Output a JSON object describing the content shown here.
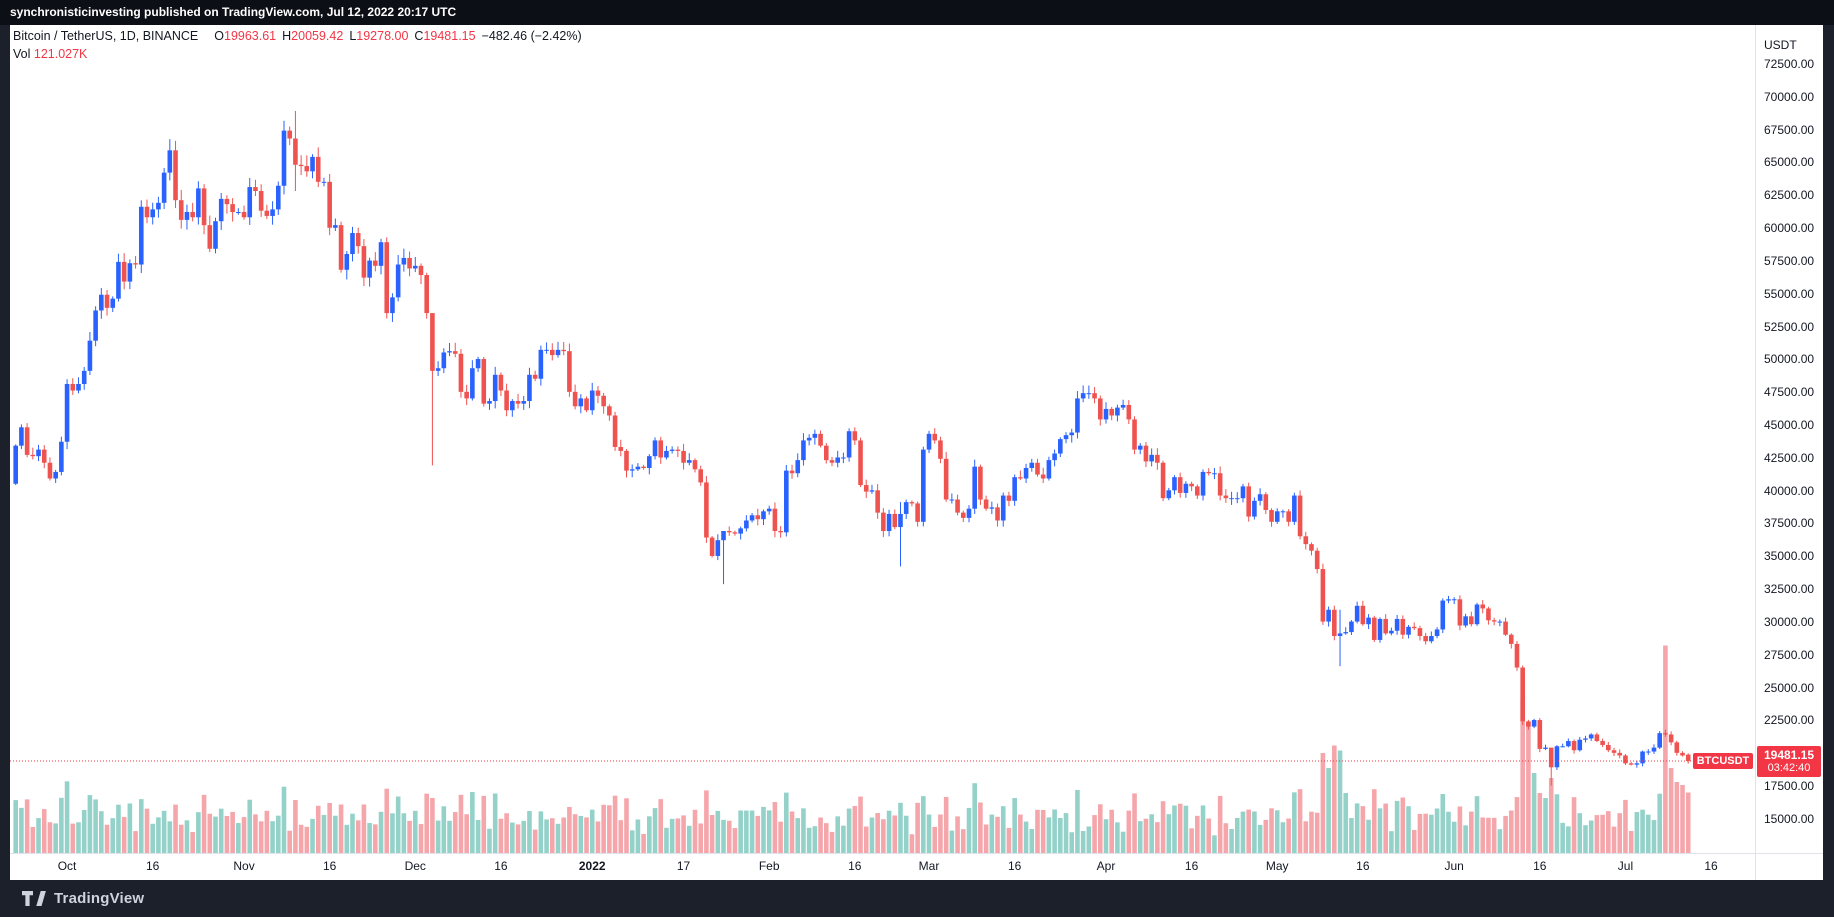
{
  "top_bar": {
    "text": "synchronisticinvesting published on TradingView.com, Jul 12, 2022 20:17 UTC"
  },
  "footer": {
    "brand": "TradingView"
  },
  "legend": {
    "title": "Bitcoin / TetherUS, 1D, BINANCE",
    "o_label": "O",
    "o": "19963.61",
    "h_label": "H",
    "h": "20059.42",
    "l_label": "L",
    "l": "19278.00",
    "c_label": "C",
    "c": "19481.15",
    "change": "−482.46 (−2.42%)",
    "vol_label": "Vol",
    "vol_value": "121.027K"
  },
  "price_axis": {
    "unit": "USDT",
    "ticks": [
      "72500.00",
      "70000.00",
      "67500.00",
      "65000.00",
      "62500.00",
      "60000.00",
      "57500.00",
      "55000.00",
      "52500.00",
      "50000.00",
      "47500.00",
      "45000.00",
      "42500.00",
      "40000.00",
      "37500.00",
      "35000.00",
      "32500.00",
      "30000.00",
      "27500.00",
      "25000.00",
      "22500.00",
      "20000.00",
      "17500.00",
      "15000.00"
    ]
  },
  "time_axis": {
    "labels": [
      {
        "text": "Oct",
        "index": 9
      },
      {
        "text": "16",
        "index": 24
      },
      {
        "text": "Nov",
        "index": 40
      },
      {
        "text": "16",
        "index": 55
      },
      {
        "text": "Dec",
        "index": 70
      },
      {
        "text": "16",
        "index": 85
      },
      {
        "text": "2022",
        "index": 101,
        "bold": true
      },
      {
        "text": "17",
        "index": 117
      },
      {
        "text": "Feb",
        "index": 132
      },
      {
        "text": "16",
        "index": 147
      },
      {
        "text": "Mar",
        "index": 160
      },
      {
        "text": "16",
        "index": 175
      },
      {
        "text": "Apr",
        "index": 191
      },
      {
        "text": "16",
        "index": 206
      },
      {
        "text": "May",
        "index": 221
      },
      {
        "text": "16",
        "index": 236
      },
      {
        "text": "Jun",
        "index": 252
      },
      {
        "text": "16",
        "index": 267
      },
      {
        "text": "Jul",
        "index": 282
      },
      {
        "text": "16",
        "index": 297
      }
    ]
  },
  "price_line": {
    "symbol": "BTCUSDT",
    "price": "19481.15",
    "countdown": "03:42:40"
  },
  "chart_data": {
    "type": "candlestick",
    "symbol": "BTCUSDT",
    "exchange": "BINANCE",
    "interval": "1D",
    "quote_currency": "USDT",
    "title": "Bitcoin / TetherUS, 1D, BINANCE",
    "last_bar": {
      "open": 19963.61,
      "high": 20059.42,
      "low": 19278.0,
      "close": 19481.15,
      "change": -482.46,
      "change_pct": -2.42,
      "volume_display": "121.027K"
    },
    "start_date": "2021-09-22",
    "end_date": "2022-07-12",
    "ylim": [
      12500,
      75500
    ],
    "grid": false,
    "first_open": 40600,
    "open_rule": "previous_close",
    "closes": [
      43500,
      44900,
      42800,
      42700,
      43200,
      42200,
      41000,
      41500,
      43800,
      48200,
      47700,
      48200,
      49200,
      51500,
      53800,
      55000,
      54000,
      54700,
      57500,
      56000,
      57400,
      57300,
      61700,
      60900,
      61500,
      62000,
      64300,
      66000,
      62200,
      60700,
      61300,
      60900,
      63100,
      60300,
      58500,
      60600,
      62300,
      61900,
      61300,
      61300,
      60900,
      63200,
      62900,
      61400,
      61000,
      61500,
      63300,
      67500,
      66900,
      64900,
      64800,
      64400,
      65500,
      63600,
      63600,
      60100,
      60300,
      56900,
      58100,
      59700,
      58700,
      56300,
      57600,
      57200,
      59000,
      53600,
      54800,
      57300,
      57800,
      57000,
      57200,
      56500,
      53600,
      49200,
      49400,
      50600,
      50700,
      50500,
      47600,
      47100,
      49400,
      50100,
      46700,
      46900,
      48900,
      47700,
      46200,
      46900,
      46700,
      46900,
      48900,
      48600,
      50800,
      50800,
      50400,
      50800,
      50700,
      47600,
      46500,
      47100,
      46200,
      47700,
      47300,
      46500,
      45800,
      43400,
      43100,
      41600,
      41700,
      41900,
      41800,
      42700,
      43900,
      42600,
      43100,
      43200,
      43100,
      42200,
      42400,
      41700,
      40700,
      36500,
      35100,
      36300,
      37000,
      36900,
      36800,
      37200,
      37800,
      38200,
      37900,
      38500,
      38700,
      37000,
      36900,
      41600,
      41400,
      42400,
      43900,
      44100,
      44400,
      43500,
      42400,
      42200,
      42600,
      42600,
      44600,
      43900,
      40500,
      40000,
      40100,
      38400,
      37000,
      38300,
      37300,
      38300,
      39200,
      39100,
      37700,
      43200,
      44400,
      43900,
      42500,
      39400,
      39400,
      38400,
      38000,
      38700,
      41900,
      39400,
      38700,
      38800,
      37800,
      39700,
      39300,
      41100,
      41000,
      41800,
      42200,
      41300,
      41000,
      42400,
      42900,
      44000,
      44300,
      44500,
      47100,
      47500,
      47500,
      47100,
      45500,
      46300,
      45800,
      46400,
      46600,
      45500,
      43200,
      43500,
      42300,
      42800,
      42200,
      39500,
      40100,
      41100,
      39900,
      40600,
      40400,
      39700,
      41500,
      41400,
      41400,
      39700,
      39500,
      39500,
      39500,
      40400,
      38100,
      39300,
      39800,
      38600,
      37700,
      38500,
      38500,
      37700,
      39700,
      36600,
      36000,
      35500,
      34100,
      30100,
      31000,
      29000,
      29200,
      29300,
      30100,
      31300,
      29900,
      30400,
      28700,
      30300,
      29200,
      29400,
      30300,
      29100,
      29700,
      29600,
      29000,
      28600,
      29000,
      29500,
      31700,
      31800,
      31800,
      29800,
      30500,
      29900,
      31400,
      31100,
      30200,
      30100,
      30100,
      29100,
      28400,
      26600,
      22500,
      22100,
      22600,
      20400,
      20500,
      19000,
      20600,
      20600,
      21000,
      20300,
      21100,
      21200,
      21500,
      21000,
      20700,
      20300,
      20100,
      19900,
      19300,
      19200,
      19300,
      20200,
      20200,
      20500,
      21600,
      21500,
      20900,
      20100,
      19900,
      19481.15
    ],
    "last_close": 19481.15,
    "open_overrides": {
      "293": 19963.61
    },
    "wick_overrides": {
      "0": [
        43600,
        40500
      ],
      "49": [
        69000,
        62900
      ],
      "73": [
        53100,
        42000
      ],
      "124": [
        36500,
        32950
      ],
      "155": [
        39200,
        34300
      ],
      "232": [
        31000,
        26700
      ],
      "269": [
        19500,
        17600
      ],
      "293": [
        20059.42,
        19278.0
      ]
    },
    "volume_overrides_k": {
      "73": 110,
      "229": 200,
      "230": 170,
      "231": 215,
      "232": 205,
      "233": 120,
      "264": 310,
      "265": 260,
      "266": 160,
      "267": 120,
      "268": 110,
      "269": 150,
      "289": 415,
      "290": 170,
      "291": 142,
      "292": 136,
      "293": 121.027
    },
    "colors": {
      "up": "#2962ff",
      "down": "#ef5350",
      "vol_up": "#94d2c9",
      "vol_down": "#f5a6ab",
      "price_line": "#f23645",
      "badge": "#f23645",
      "axis_text": "#131722",
      "background": "#ffffff"
    },
    "legend_position": "top-left",
    "price_scale_position": "right"
  }
}
